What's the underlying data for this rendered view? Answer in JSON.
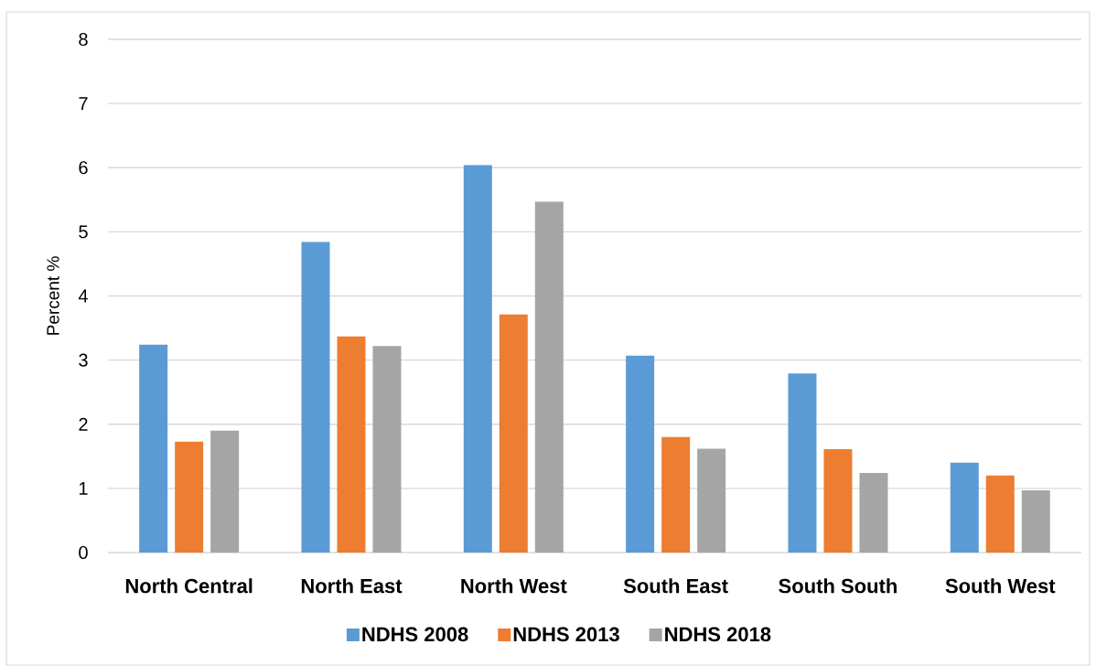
{
  "chart_data": {
    "type": "bar",
    "ylabel": "Percent %",
    "categories": [
      "North Central",
      "North East",
      "North West",
      "South East",
      "South South",
      "South West"
    ],
    "series": [
      {
        "name": "NDHS 2008",
        "color": "#5b9bd5",
        "values": [
          3.24,
          4.84,
          6.04,
          3.07,
          2.79,
          1.4
        ]
      },
      {
        "name": "NDHS 2013",
        "color": "#ed7d31",
        "values": [
          1.73,
          3.37,
          3.71,
          1.8,
          1.61,
          1.2
        ]
      },
      {
        "name": "NDHS 2018",
        "color": "#a5a5a5",
        "values": [
          1.9,
          3.22,
          5.47,
          1.62,
          1.24,
          0.97
        ]
      }
    ],
    "ylim": [
      0,
      8
    ],
    "yticks": [
      0,
      1,
      2,
      3,
      4,
      5,
      6,
      7,
      8
    ],
    "grid": "y",
    "legend": "bottom"
  }
}
